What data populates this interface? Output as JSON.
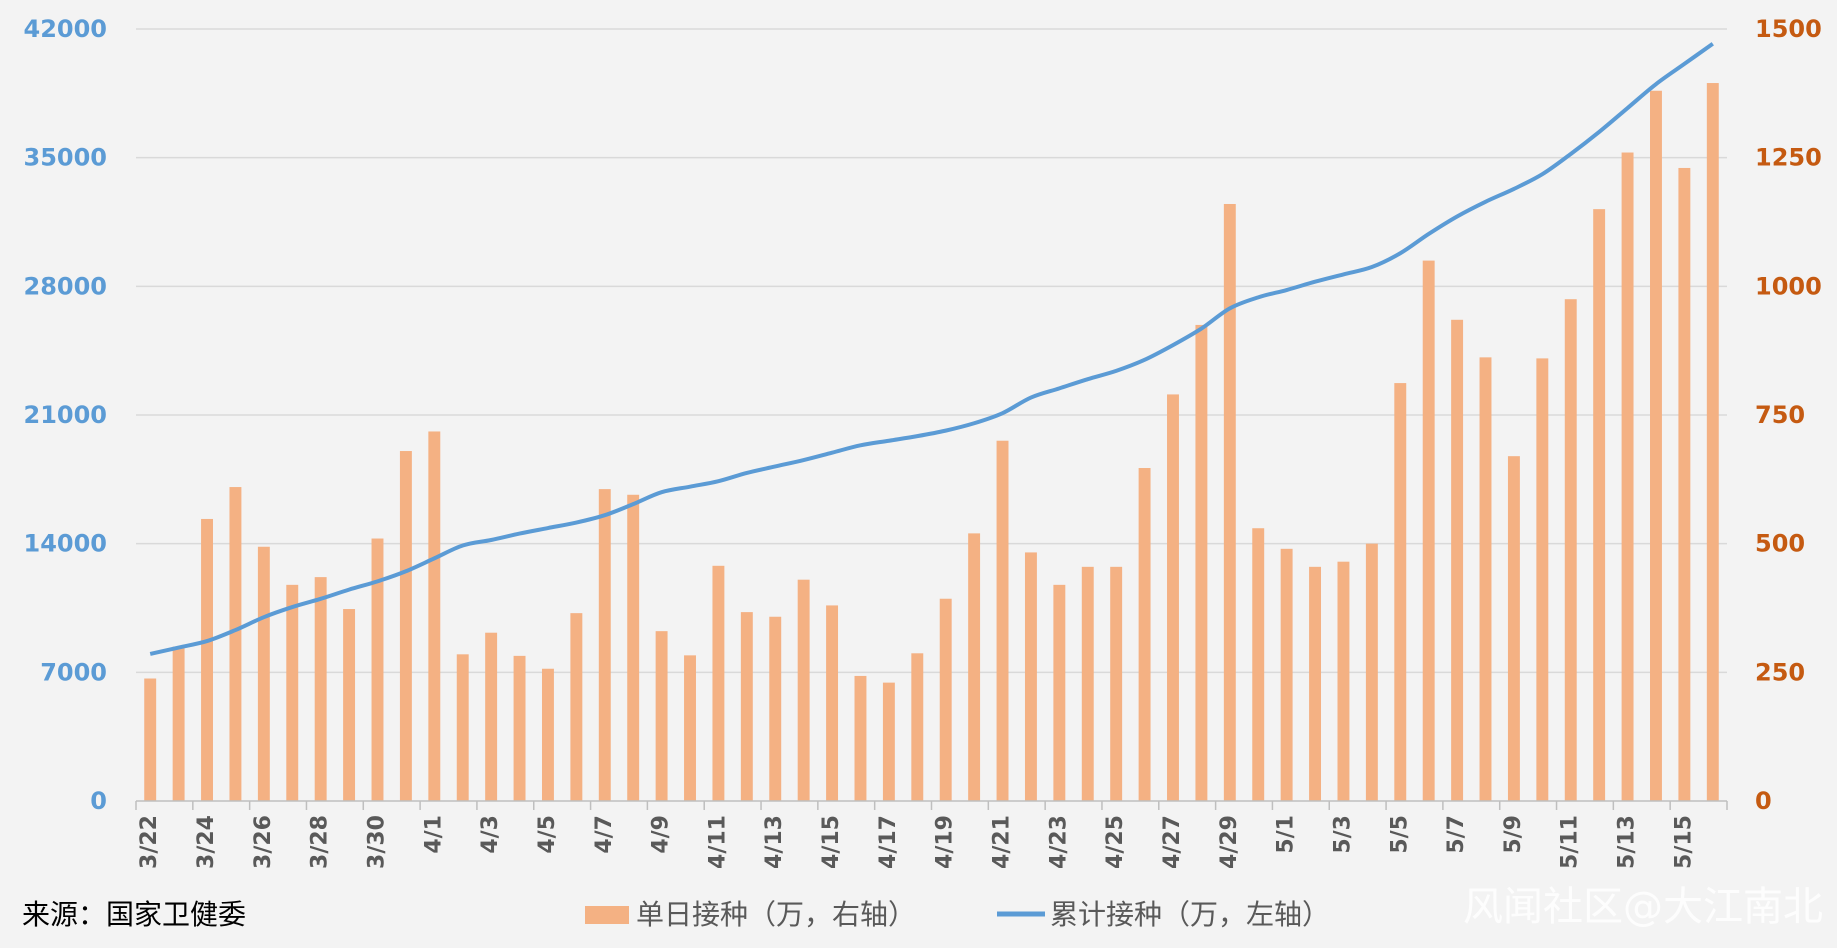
{
  "chart_data": {
    "type": "bar",
    "categories": [
      "3/22",
      "3/23",
      "3/24",
      "3/25",
      "3/26",
      "3/27",
      "3/28",
      "3/29",
      "3/30",
      "3/31",
      "4/1",
      "4/2",
      "4/3",
      "4/4",
      "4/5",
      "4/6",
      "4/7",
      "4/8",
      "4/9",
      "4/10",
      "4/11",
      "4/12",
      "4/13",
      "4/14",
      "4/15",
      "4/16",
      "4/17",
      "4/18",
      "4/19",
      "4/20",
      "4/21",
      "4/22",
      "4/23",
      "4/24",
      "4/25",
      "4/26",
      "4/27",
      "4/28",
      "4/29",
      "4/30",
      "5/1",
      "5/2",
      "5/3",
      "5/4",
      "5/5",
      "5/6",
      "5/7",
      "5/8",
      "5/9",
      "5/10",
      "5/11",
      "5/12",
      "5/13",
      "5/14",
      "5/15",
      "5/16"
    ],
    "x_tick_labels": [
      "3/22",
      "3/24",
      "3/26",
      "3/28",
      "3/30",
      "4/1",
      "4/3",
      "4/5",
      "4/7",
      "4/9",
      "4/11",
      "4/13",
      "4/15",
      "4/17",
      "4/19",
      "4/21",
      "4/23",
      "4/25",
      "4/27",
      "4/29",
      "5/1",
      "5/3",
      "5/5",
      "5/7",
      "5/9",
      "5/11",
      "5/13",
      "5/15"
    ],
    "series": [
      {
        "name": "单日接种（万，右轴）",
        "type": "bar",
        "axis": "right",
        "color": "#f4b183",
        "values": [
          238,
          300,
          548,
          610,
          494,
          420,
          435,
          373,
          510,
          680,
          718,
          285,
          327,
          282,
          257,
          365,
          606,
          595,
          330,
          283,
          457,
          367,
          358,
          430,
          380,
          243,
          230,
          287,
          393,
          520,
          700,
          483,
          420,
          455,
          455,
          647,
          790,
          925,
          1160,
          530,
          490,
          455,
          465,
          500,
          812,
          1050,
          935,
          862,
          670,
          860,
          975,
          1150,
          1260,
          1380,
          1230,
          1395
        ]
      },
      {
        "name": "累计接种（万，左轴）",
        "type": "line",
        "axis": "left",
        "color": "#5b9bd5",
        "values": [
          8000,
          8350,
          8700,
          9300,
          10000,
          10550,
          11000,
          11500,
          11950,
          12500,
          13200,
          13900,
          14200,
          14550,
          14850,
          15150,
          15550,
          16150,
          16800,
          17100,
          17400,
          17850,
          18200,
          18550,
          18950,
          19350,
          19600,
          19850,
          20150,
          20550,
          21100,
          21950,
          22450,
          22950,
          23400,
          24000,
          24800,
          25700,
          26800,
          27400,
          27800,
          28250,
          28650,
          29050,
          29800,
          30850,
          31800,
          32600,
          33300,
          34100,
          35200,
          36400,
          37700,
          39000,
          40100,
          41200
        ]
      }
    ],
    "y_left": {
      "ticks": [
        "0",
        "7000",
        "14000",
        "21000",
        "28000",
        "35000",
        "42000"
      ],
      "min": 0,
      "max": 42000,
      "color": "#5b9bd5"
    },
    "y_right": {
      "ticks": [
        "0",
        "250",
        "500",
        "750",
        "1000",
        "1250",
        "1500"
      ],
      "min": 0,
      "max": 1500,
      "color": "#c55a11"
    },
    "grid": true,
    "legend": {
      "position": "bottom",
      "items": [
        "单日接种（万，右轴）",
        "累计接种（万，左轴）"
      ]
    },
    "source": "来源：国家卫健委",
    "watermark": "风闻社区@大江南北"
  }
}
